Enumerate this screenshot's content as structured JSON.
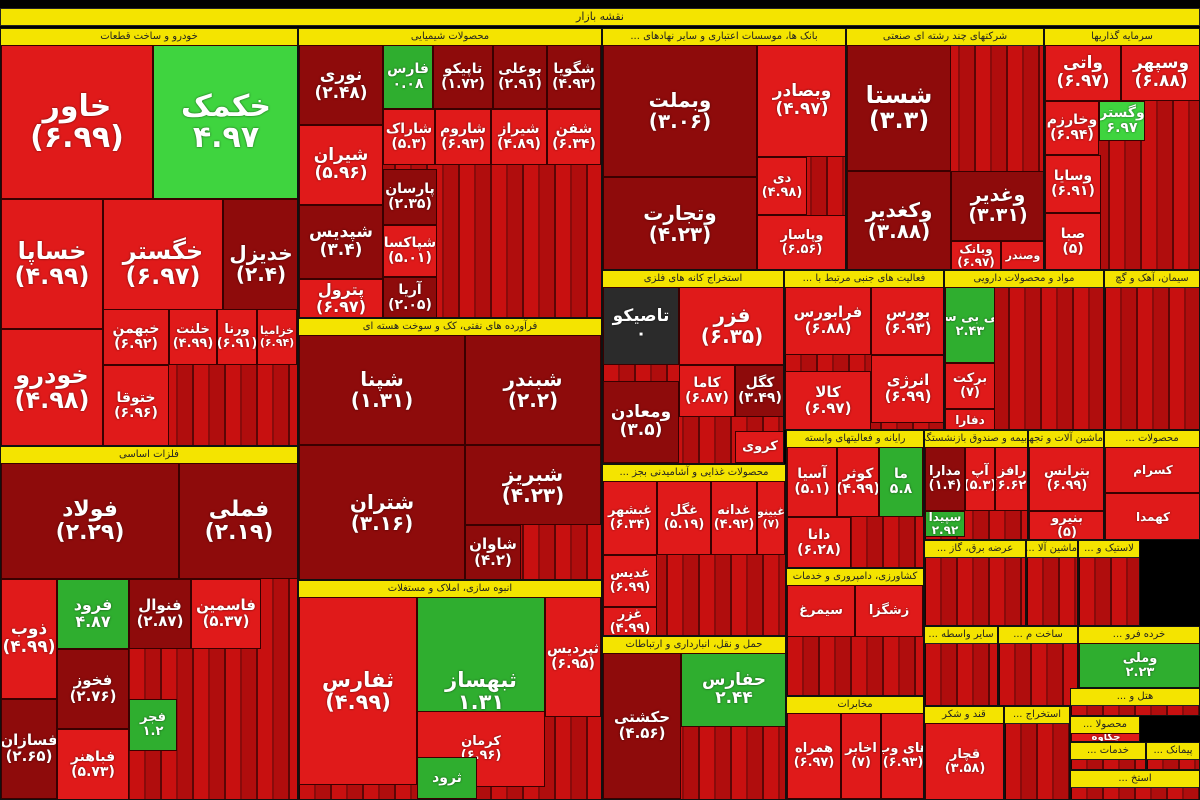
{
  "chart_data": {
    "type": "treemap",
    "title": "نقشه بازار",
    "colors": {
      "up": "#2fae2f",
      "up_light": "#3fd43f",
      "down": "#e01a1a",
      "down_dark": "#8e0b0b",
      "neutral": "#2b2b2b",
      "header": "#f4e400"
    },
    "sectors": [
      {
        "name": "خودرو و ساخت قطعات",
        "tiles": [
          {
            "name": "خاور",
            "value": "(۶.۹۹)",
            "c": "down"
          },
          {
            "name": "خکمک",
            "value": "۴.۹۷",
            "c": "up_light"
          },
          {
            "name": "خساپا",
            "value": "(۴.۹۹)",
            "c": "down"
          },
          {
            "name": "خگستر",
            "value": "(۶.۹۷)",
            "c": "down"
          },
          {
            "name": "خدیزل",
            "value": "(۲.۴)",
            "c": "down_dark"
          },
          {
            "name": "خودرو",
            "value": "(۴.۹۸)",
            "c": "down"
          },
          {
            "name": "خبهمن",
            "value": "(۶.۹۲)",
            "c": "down"
          },
          {
            "name": "خلنت",
            "value": "(۴.۹۹)",
            "c": "down"
          },
          {
            "name": "ورنا",
            "value": "(۶.۹۱)",
            "c": "down"
          },
          {
            "name": "خزامیا",
            "value": "(۶.۹۴)",
            "c": "down"
          },
          {
            "name": "ختوقا",
            "value": "(۶.۹۶)",
            "c": "down"
          }
        ]
      },
      {
        "name": "محصولات شیمیایی",
        "tiles": [
          {
            "name": "نوری",
            "value": "(۲.۴۸)",
            "c": "down_dark"
          },
          {
            "name": "فارس",
            "value": "۰.۰۸",
            "c": "up"
          },
          {
            "name": "تاپیکو",
            "value": "(۱.۷۲)",
            "c": "down_dark"
          },
          {
            "name": "بوعلی",
            "value": "(۲.۹۱)",
            "c": "down_dark"
          },
          {
            "name": "شگویا",
            "value": "(۴.۹۳)",
            "c": "down_dark"
          },
          {
            "name": "شیران",
            "value": "(۵.۹۶)",
            "c": "down"
          },
          {
            "name": "شاراک",
            "value": "(۵.۳)",
            "c": "down"
          },
          {
            "name": "شاروم",
            "value": "(۶.۹۳)",
            "c": "down"
          },
          {
            "name": "شیراز",
            "value": "(۴.۸۹)",
            "c": "down"
          },
          {
            "name": "شفن",
            "value": "(۶.۳۴)",
            "c": "down"
          },
          {
            "name": "شپدیس",
            "value": "(۳.۴)",
            "c": "down_dark"
          },
          {
            "name": "پارسان",
            "value": "(۲.۳۵)",
            "c": "down_dark"
          },
          {
            "name": "پترول",
            "value": "(۶.۹۷)",
            "c": "down"
          },
          {
            "name": "شپاکسا",
            "value": "(۵.۰۱)",
            "c": "down"
          },
          {
            "name": "آریا",
            "value": "(۲.۰۵)",
            "c": "down_dark"
          }
        ]
      },
      {
        "name": "بانک ها، موسسات اعتباری و سایر نهادهای ...",
        "tiles": [
          {
            "name": "وبملت",
            "value": "(۳.۰۶)",
            "c": "down_dark"
          },
          {
            "name": "وبصادر",
            "value": "(۴.۹۷)",
            "c": "down"
          },
          {
            "name": "وتجارت",
            "value": "(۴.۲۳)",
            "c": "down_dark"
          },
          {
            "name": "دی",
            "value": "(۴.۹۸)",
            "c": "down"
          },
          {
            "name": "وپاسار",
            "value": "(۶.۵۶)",
            "c": "down"
          }
        ]
      },
      {
        "name": "شرکتهای چند رشته ای صنعتی",
        "tiles": [
          {
            "name": "شستا",
            "value": "(۳.۳)",
            "c": "down_dark"
          },
          {
            "name": "وکغدیر",
            "value": "(۳.۸۸)",
            "c": "down_dark"
          },
          {
            "name": "وغدیر",
            "value": "(۳.۳۱)",
            "c": "down_dark"
          },
          {
            "name": "وبانک",
            "value": "(۶.۹۷)",
            "c": "down"
          },
          {
            "name": "وصندر",
            "value": "",
            "c": "down"
          }
        ]
      },
      {
        "name": "سرمایه گذاریها",
        "tiles": [
          {
            "name": "واتی",
            "value": "(۶.۹۷)",
            "c": "down"
          },
          {
            "name": "وسپهر",
            "value": "(۶.۸۸)",
            "c": "down"
          },
          {
            "name": "وخارزم",
            "value": "(۶.۹۴)",
            "c": "down"
          },
          {
            "name": "وگستر",
            "value": "۶.۹۷",
            "c": "up_light"
          },
          {
            "name": "وسایا",
            "value": "(۶.۹۱)",
            "c": "down"
          },
          {
            "name": "صبا",
            "value": "(۵)",
            "c": "down"
          }
        ]
      },
      {
        "name": "فلزات اساسی",
        "tiles": [
          {
            "name": "فولاد",
            "value": "(۲.۲۹)",
            "c": "down_dark"
          },
          {
            "name": "فملی",
            "value": "(۲.۱۹)",
            "c": "down_dark"
          },
          {
            "name": "ذوب",
            "value": "(۴.۹۹)",
            "c": "down"
          },
          {
            "name": "فرود",
            "value": "۴.۸۷",
            "c": "up"
          },
          {
            "name": "فنوال",
            "value": "(۲.۸۷)",
            "c": "down_dark"
          },
          {
            "name": "فاسمین",
            "value": "(۵.۳۷)",
            "c": "down"
          },
          {
            "name": "فخوز",
            "value": "(۲.۷۶)",
            "c": "down_dark"
          },
          {
            "name": "فسازان",
            "value": "(۲.۶۵)",
            "c": "down_dark"
          },
          {
            "name": "فباهنر",
            "value": "(۵.۷۳)",
            "c": "down"
          },
          {
            "name": "فجر",
            "value": "۱.۲",
            "c": "up"
          }
        ]
      },
      {
        "name": "فرآورده های نفتی، کک و سوخت هسته ای",
        "tiles": [
          {
            "name": "شپنا",
            "value": "(۱.۳۱)",
            "c": "down_dark"
          },
          {
            "name": "شبندر",
            "value": "(۲.۲)",
            "c": "down_dark"
          },
          {
            "name": "شتران",
            "value": "(۳.۱۶)",
            "c": "down_dark"
          },
          {
            "name": "شبریز",
            "value": "(۴.۲۳)",
            "c": "down_dark"
          },
          {
            "name": "شاوان",
            "value": "(۴.۲)",
            "c": "down_dark"
          }
        ]
      },
      {
        "name": "انبوه سازی، املاک و مستغلات",
        "tiles": [
          {
            "name": "ثفارس",
            "value": "(۴.۹۹)",
            "c": "down"
          },
          {
            "name": "ثبهساز",
            "value": "۱.۳۱",
            "c": "up"
          },
          {
            "name": "ثپردیس",
            "value": "(۶.۹۵)",
            "c": "down"
          },
          {
            "name": "کرمان",
            "value": "(۶.۹۶)",
            "c": "down"
          },
          {
            "name": "ثرود",
            "value": "",
            "c": "up"
          }
        ]
      },
      {
        "name": "استخراج کانه های فلزی",
        "tiles": [
          {
            "name": "تاصیکو",
            "value": "۰",
            "c": "neutral"
          },
          {
            "name": "فزر",
            "value": "(۶.۳۵)",
            "c": "down"
          },
          {
            "name": "کاما",
            "value": "(۶.۸۷)",
            "c": "down"
          },
          {
            "name": "کگل",
            "value": "(۳.۴۹)",
            "c": "down_dark"
          },
          {
            "name": "ومعادن",
            "value": "(۳.۵)",
            "c": "down_dark"
          },
          {
            "name": "کروی",
            "value": "",
            "c": "down"
          }
        ]
      },
      {
        "name": "فعالیت های جنبی مرتبط با ...",
        "tiles": [
          {
            "name": "فرابورس",
            "value": "(۶.۸۸)",
            "c": "down"
          },
          {
            "name": "بورس",
            "value": "(۶.۹۳)",
            "c": "down"
          },
          {
            "name": "انرژی",
            "value": "(۶.۹۹)",
            "c": "down"
          },
          {
            "name": "کالا",
            "value": "(۶.۹۷)",
            "c": "down"
          }
        ]
      },
      {
        "name": "مواد و محصولات دارویی",
        "tiles": [
          {
            "name": "تکی بی سی",
            "value": "۲.۴۳",
            "c": "up"
          },
          {
            "name": "برکت",
            "value": "(۷)",
            "c": "down"
          },
          {
            "name": "دفارا",
            "value": "",
            "c": "down"
          }
        ]
      },
      {
        "name": "سیمان، آهک و گچ",
        "tiles": []
      },
      {
        "name": "محصولات غذایی و آشامیدنی بجز ...",
        "tiles": [
          {
            "name": "غبشهر",
            "value": "(۶.۳۴)",
            "c": "down"
          },
          {
            "name": "غگل",
            "value": "(۵.۱۹)",
            "c": "down"
          },
          {
            "name": "غدانه",
            "value": "(۴.۹۲)",
            "c": "down"
          },
          {
            "name": "غبینو",
            "value": "(۷)",
            "c": "down"
          },
          {
            "name": "غدیس",
            "value": "(۶.۹۹)",
            "c": "down"
          },
          {
            "name": "غزر",
            "value": "(۴.۹۹)",
            "c": "down"
          }
        ]
      },
      {
        "name": "رایانه و فعالیتهای وابسته",
        "tiles": [
          {
            "name": "آسیا",
            "value": "(۵.۱)",
            "c": "down"
          },
          {
            "name": "کوثر",
            "value": "(۴.۹۹)",
            "c": "down"
          },
          {
            "name": "ما",
            "value": "۵.۸",
            "c": "up"
          },
          {
            "name": "دانا",
            "value": "(۶.۲۸)",
            "c": "down"
          }
        ]
      },
      {
        "name": "بیمه و صندوق بازنشستگی",
        "tiles": [
          {
            "name": "مدارا",
            "value": "(۱.۴)",
            "c": "down_dark"
          },
          {
            "name": "آپ",
            "value": "(۵.۳)",
            "c": "down"
          },
          {
            "name": "رافز",
            "value": "(۶.۶۲)",
            "c": "down"
          },
          {
            "name": "سپیدا",
            "value": "۲.۹۲",
            "c": "up"
          }
        ]
      },
      {
        "name": "ماشین آلات و تجهیزات",
        "tiles": [
          {
            "name": "بترانس",
            "value": "(۶.۹۹)",
            "c": "down"
          },
          {
            "name": "بنیرو",
            "value": "(۵)",
            "c": "down"
          }
        ]
      },
      {
        "name": "محصولات ...",
        "tiles": [
          {
            "name": "کسرام",
            "value": "",
            "c": "down"
          },
          {
            "name": "کهمدا",
            "value": "",
            "c": "down"
          }
        ]
      },
      {
        "name": "حمل و نقل، انبارداری و ارتباطات",
        "tiles": [
          {
            "name": "حکشتی",
            "value": "(۴.۵۶)",
            "c": "down_dark"
          },
          {
            "name": "حفارس",
            "value": "۲.۴۴",
            "c": "up"
          }
        ]
      },
      {
        "name": "کشاورزی، دامپروری و خدمات",
        "tiles": [
          {
            "name": "سیمرغ",
            "value": "",
            "c": "down"
          },
          {
            "name": "زشگزا",
            "value": "",
            "c": "down"
          }
        ]
      },
      {
        "name": "مخابرات",
        "tiles": [
          {
            "name": "همراه",
            "value": "(۶.۹۷)",
            "c": "down"
          },
          {
            "name": "اخابر",
            "value": "(۷)",
            "c": "down"
          },
          {
            "name": "های وب",
            "value": "(۶.۹۳)",
            "c": "down"
          }
        ]
      },
      {
        "name": "عرضه برق، گاز ...",
        "tiles": []
      },
      {
        "name": "ماشین آلا ...",
        "tiles": []
      },
      {
        "name": "لاستیک و ...",
        "tiles": []
      },
      {
        "name": "سایر واسطه ...",
        "tiles": []
      },
      {
        "name": "ساخت م ...",
        "tiles": []
      },
      {
        "name": "خرده فرو ...",
        "tiles": [
          {
            "name": "وملی",
            "value": "۲.۲۳",
            "c": "up"
          }
        ]
      },
      {
        "name": "قند و شکر",
        "tiles": [
          {
            "name": "قچار",
            "value": "(۳.۵۸)",
            "c": "down"
          }
        ]
      },
      {
        "name": "استخراج ...",
        "tiles": []
      },
      {
        "name": "هتل و ...",
        "tiles": []
      },
      {
        "name": "محصولا ...",
        "tiles": [
          {
            "name": "چکاوه",
            "value": "",
            "c": "down"
          }
        ]
      },
      {
        "name": "خدمات ...",
        "tiles": []
      },
      {
        "name": "پیمانک ...",
        "tiles": []
      },
      {
        "name": "استخ ...",
        "tiles": []
      }
    ]
  }
}
